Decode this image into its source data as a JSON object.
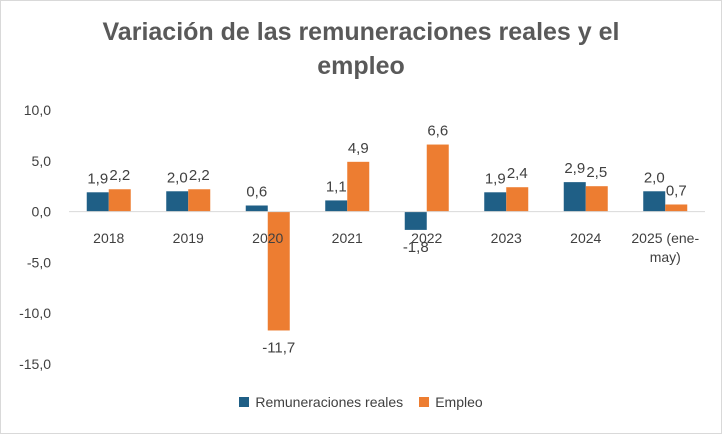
{
  "chart_data": {
    "type": "bar",
    "title": "Variación de las remuneraciones reales y el empleo",
    "title_lines": [
      "Variación de las remuneraciones reales y el",
      "empleo"
    ],
    "categories": [
      "2018",
      "2019",
      "2020",
      "2021",
      "2022",
      "2023",
      "2024",
      "2025 (ene-may)"
    ],
    "category_lines": [
      [
        "2018"
      ],
      [
        "2019"
      ],
      [
        "2020"
      ],
      [
        "2021"
      ],
      [
        "2022"
      ],
      [
        "2023"
      ],
      [
        "2024"
      ],
      [
        "2025 (ene-",
        "may)"
      ]
    ],
    "series": [
      {
        "name": "Remuneraciones reales",
        "color": "#1f5f86",
        "values": [
          1.9,
          2.0,
          0.6,
          1.1,
          -1.8,
          1.9,
          2.9,
          2.0
        ],
        "labels": [
          "1,9",
          "2,0",
          "0,6",
          "1,1",
          "-1,8",
          "1,9",
          "2,9",
          "2,0"
        ]
      },
      {
        "name": "Empleo",
        "color": "#ed7d31",
        "values": [
          2.2,
          2.2,
          -11.7,
          4.9,
          6.6,
          2.4,
          2.5,
          0.7
        ],
        "labels": [
          "2,2",
          "2,2",
          "-11,7",
          "4,9",
          "6,6",
          "2,4",
          "2,5",
          "0,7"
        ]
      }
    ],
    "ylim": [
      -15,
      10
    ],
    "yticks": [
      10,
      5,
      0,
      -5,
      -10,
      -15
    ],
    "ytick_labels": [
      "10,0",
      "5,0",
      "0,0",
      "-5,0",
      "-10,0",
      "-15,0"
    ],
    "xlabel": "",
    "ylabel": "",
    "grid": false,
    "legend_position": "bottom"
  }
}
